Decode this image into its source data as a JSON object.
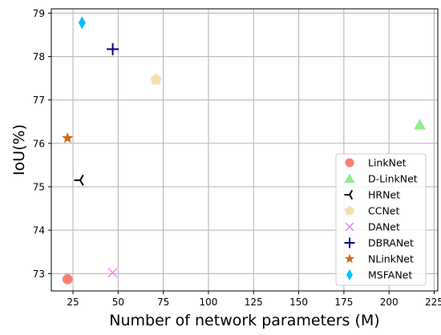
{
  "chart_data": {
    "type": "scatter",
    "title": "",
    "xlabel": "Number of network parameters (M)",
    "ylabel": "IoU(%)",
    "xlim": [
      13,
      227
    ],
    "ylim": [
      72.6,
      79.1
    ],
    "xticks": [
      25,
      50,
      75,
      100,
      125,
      150,
      175,
      200,
      225
    ],
    "yticks": [
      73,
      74,
      75,
      76,
      77,
      78,
      79
    ],
    "grid": true,
    "legend_position": "bottom-right",
    "series": [
      {
        "name": "LinkNet",
        "x": 22,
        "y": 72.87,
        "marker": "circle",
        "color": "#fa8072"
      },
      {
        "name": "D-LinkNet",
        "x": 217,
        "y": 76.43,
        "marker": "triangle",
        "color": "#90ee90"
      },
      {
        "name": "HRNet",
        "x": 29,
        "y": 75.15,
        "marker": "tri-left",
        "color": "#000000"
      },
      {
        "name": "CCNet",
        "x": 71,
        "y": 77.47,
        "marker": "pentagon",
        "color": "#f5deb3"
      },
      {
        "name": "DANet",
        "x": 47,
        "y": 73.02,
        "marker": "x",
        "color": "#ee82ee"
      },
      {
        "name": "DBRANet",
        "x": 47,
        "y": 78.17,
        "marker": "plus",
        "color": "#000080"
      },
      {
        "name": "NLinkNet",
        "x": 22,
        "y": 76.12,
        "marker": "star",
        "color": "#d2691e"
      },
      {
        "name": "MSFANet",
        "x": 30,
        "y": 78.78,
        "marker": "diamond",
        "color": "#00bfff"
      }
    ]
  }
}
